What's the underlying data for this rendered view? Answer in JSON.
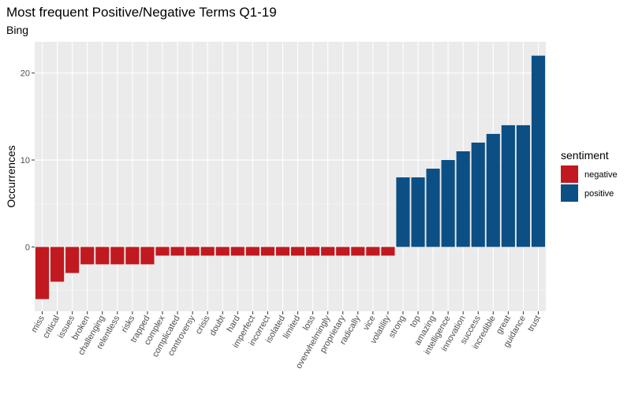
{
  "chart_data": {
    "type": "bar",
    "title": "Most frequent Positive/Negative Terms Q1-19",
    "subtitle": "Bing",
    "xlabel": "",
    "ylabel": "Occurrences",
    "ylim": [
      -7.4,
      23.6
    ],
    "yticks": [
      0,
      10,
      20
    ],
    "grid": true,
    "legend": {
      "title": "sentiment",
      "position": "right",
      "entries": [
        {
          "label": "negative",
          "color": "#C0191F"
        },
        {
          "label": "positive",
          "color": "#0C4F84"
        }
      ]
    },
    "categories": [
      "miss",
      "critical",
      "issues",
      "broken",
      "challenging",
      "relentless",
      "risks",
      "trapped",
      "complex",
      "complicated",
      "controversy",
      "crisis",
      "doubt",
      "hard",
      "imperfect",
      "incorrect",
      "isolated",
      "limited",
      "loss",
      "overwhelmingly",
      "proprietary",
      "radically",
      "vice",
      "volatility",
      "strong",
      "top",
      "amazing",
      "intelligence",
      "innovation",
      "success",
      "incredible",
      "great",
      "guidance",
      "trust"
    ],
    "values": [
      -6,
      -4,
      -3,
      -2,
      -2,
      -2,
      -2,
      -2,
      -1,
      -1,
      -1,
      -1,
      -1,
      -1,
      -1,
      -1,
      -1,
      -1,
      -1,
      -1,
      -1,
      -1,
      -1,
      -1,
      8,
      8,
      9,
      10,
      11,
      12,
      13,
      14,
      14,
      22
    ],
    "sentiment": [
      "negative",
      "negative",
      "negative",
      "negative",
      "negative",
      "negative",
      "negative",
      "negative",
      "negative",
      "negative",
      "negative",
      "negative",
      "negative",
      "negative",
      "negative",
      "negative",
      "negative",
      "negative",
      "negative",
      "negative",
      "negative",
      "negative",
      "negative",
      "negative",
      "positive",
      "positive",
      "positive",
      "positive",
      "positive",
      "positive",
      "positive",
      "positive",
      "positive",
      "positive"
    ]
  }
}
